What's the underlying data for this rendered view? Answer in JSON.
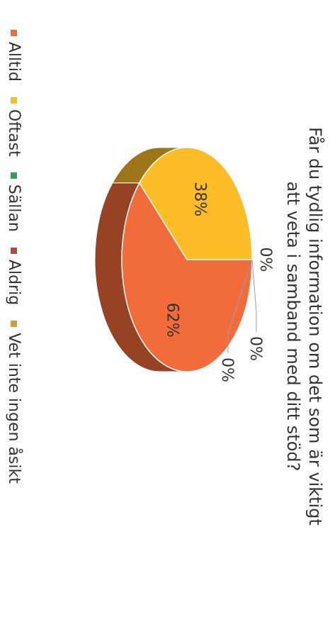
{
  "chart_data": {
    "type": "pie",
    "title": "Får du tydlig information om det som är viktigt att veta i samband med ditt stöd?",
    "title_lines": [
      "Får du tydlig information om det som är viktigt",
      "att veta i samband med ditt stöd?"
    ],
    "categories": [
      "Alltid",
      "Oftast",
      "Sällan",
      "Aldrig",
      "Vet inte ingen åsikt"
    ],
    "values": [
      62,
      38,
      0,
      0,
      0
    ],
    "value_labels": [
      "62%",
      "38%",
      "0%",
      "0%",
      "0%"
    ],
    "colors": [
      "#f26b3a",
      "#fbbc26",
      "#3b9a4b",
      "#b5483a",
      "#c6a23a"
    ],
    "legend_position": "bottom",
    "style": "3d"
  }
}
